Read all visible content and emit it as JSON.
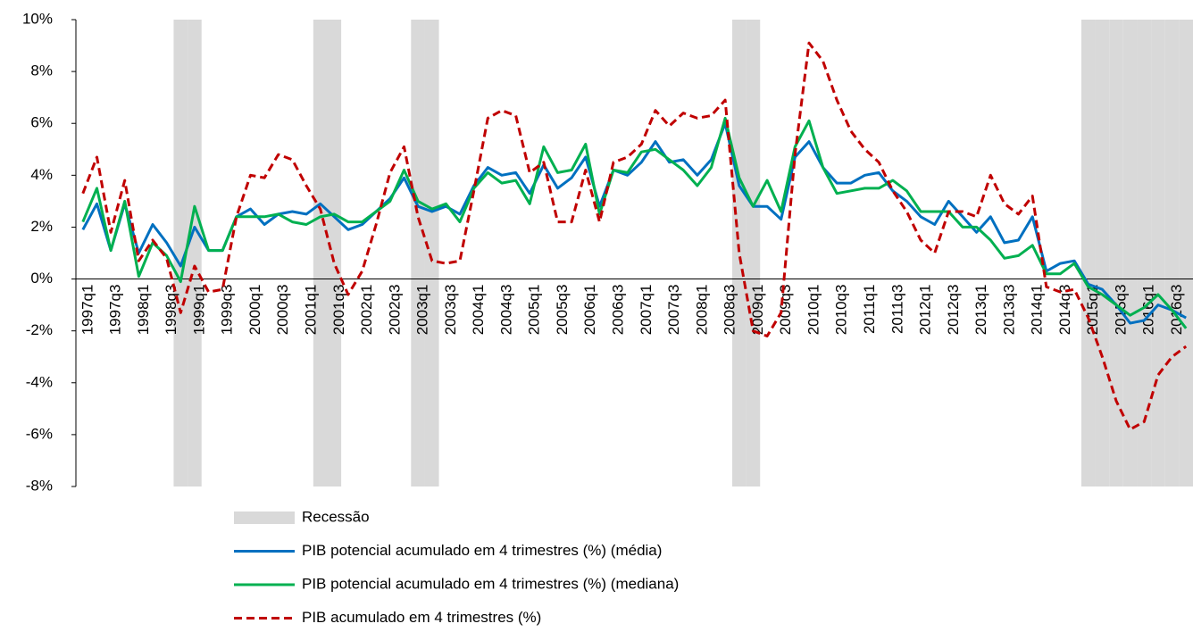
{
  "chart_data": {
    "type": "line",
    "categories": [
      "1997q1",
      null,
      "1997q3",
      null,
      "1998q1",
      null,
      "1998q3",
      null,
      "1999q1",
      null,
      "1999q3",
      null,
      "2000q1",
      null,
      "2000q3",
      null,
      "2001q1",
      null,
      "2001q3",
      null,
      "2002q1",
      null,
      "2002q3",
      null,
      "2003q1",
      null,
      "2003q3",
      null,
      "2004q1",
      null,
      "2004q3",
      null,
      "2005q1",
      null,
      "2005q3",
      null,
      "2006q1",
      null,
      "2006q3",
      null,
      "2007q1",
      null,
      "2007q3",
      null,
      "2008q1",
      null,
      "2008q3",
      null,
      "2009q1",
      null,
      "2009q3",
      null,
      "2010q1",
      null,
      "2010q3",
      null,
      "2011q1",
      null,
      "2011q3",
      null,
      "2012q1",
      null,
      "2012q3",
      null,
      "2013q1",
      null,
      "2013q3",
      null,
      "2014q1",
      null,
      "2014q3",
      null,
      "2015q1",
      null,
      "2015q3",
      null,
      "2016q1",
      null,
      "2016q3",
      null
    ],
    "recession": {
      "name": "Recessão",
      "color": "#d9d9d9",
      "values": [
        0,
        0,
        0,
        0,
        0,
        0,
        0,
        1,
        1,
        0,
        0,
        0,
        0,
        0,
        0,
        0,
        0,
        1,
        1,
        0,
        0,
        0,
        0,
        0,
        1,
        1,
        0,
        0,
        0,
        0,
        0,
        0,
        0,
        0,
        0,
        0,
        0,
        0,
        0,
        0,
        0,
        0,
        0,
        0,
        0,
        0,
        0,
        1,
        1,
        0,
        0,
        0,
        0,
        0,
        0,
        0,
        0,
        0,
        0,
        0,
        0,
        0,
        0,
        0,
        0,
        0,
        0,
        0,
        0,
        0,
        0,
        0,
        1,
        1,
        1,
        1,
        1,
        1,
        1,
        1
      ]
    },
    "series": [
      {
        "name": "PIB potencial acumulado em 4 trimestres (%) (média)",
        "color": "#0070c0",
        "dashed": false,
        "values": [
          1.9,
          2.9,
          1.1,
          2.9,
          1.0,
          2.1,
          1.4,
          0.5,
          2.0,
          1.1,
          1.1,
          2.4,
          2.7,
          2.1,
          2.5,
          2.6,
          2.5,
          2.9,
          2.4,
          1.9,
          2.1,
          2.6,
          3.1,
          3.9,
          2.8,
          2.6,
          2.8,
          2.5,
          3.6,
          4.3,
          4.0,
          4.1,
          3.3,
          4.4,
          3.5,
          3.9,
          4.7,
          2.8,
          4.2,
          4.0,
          4.5,
          5.3,
          4.5,
          4.6,
          4.0,
          4.6,
          6.0,
          3.6,
          2.8,
          2.8,
          2.3,
          4.7,
          5.3,
          4.3,
          3.7,
          3.7,
          4.0,
          4.1,
          3.4,
          3.0,
          2.4,
          2.1,
          3.0,
          2.4,
          1.8,
          2.4,
          1.4,
          1.5,
          2.4,
          0.3,
          0.6,
          0.7,
          -0.2,
          -0.4,
          -1.0,
          -1.7,
          -1.6,
          -1.0,
          -1.2,
          -1.5
        ]
      },
      {
        "name": "PIB potencial acumulado em 4 trimestres (%) (mediana)",
        "color": "#00b050",
        "dashed": false,
        "values": [
          2.2,
          3.5,
          1.1,
          3.0,
          0.1,
          1.4,
          0.9,
          -0.1,
          2.8,
          1.1,
          1.1,
          2.4,
          2.4,
          2.4,
          2.5,
          2.2,
          2.1,
          2.4,
          2.5,
          2.2,
          2.2,
          2.6,
          3.0,
          4.2,
          3.0,
          2.7,
          2.9,
          2.2,
          3.5,
          4.1,
          3.7,
          3.8,
          2.9,
          5.1,
          4.1,
          4.2,
          5.2,
          2.5,
          4.2,
          4.1,
          4.9,
          5.0,
          4.6,
          4.2,
          3.6,
          4.3,
          6.2,
          3.9,
          2.8,
          3.8,
          2.6,
          5.1,
          6.1,
          4.3,
          3.3,
          3.4,
          3.5,
          3.5,
          3.8,
          3.4,
          2.6,
          2.6,
          2.6,
          2.0,
          2.0,
          1.5,
          0.8,
          0.9,
          1.3,
          0.2,
          0.2,
          0.6,
          -0.3,
          -0.6,
          -1.0,
          -1.4,
          -1.1,
          -0.6,
          -1.2,
          -1.9
        ]
      },
      {
        "name": "PIB acumulado em 4 trimestres (%)",
        "color": "#c00000",
        "dashed": true,
        "values": [
          3.3,
          4.7,
          1.8,
          3.8,
          0.7,
          1.5,
          0.8,
          -1.3,
          0.5,
          -0.5,
          -0.4,
          2.4,
          4.0,
          3.9,
          4.8,
          4.6,
          3.6,
          2.7,
          0.6,
          -0.6,
          0.3,
          2.1,
          4.1,
          5.1,
          2.4,
          0.7,
          0.6,
          0.7,
          3.4,
          6.2,
          6.5,
          6.3,
          4.1,
          4.5,
          2.2,
          2.2,
          4.2,
          2.2,
          4.5,
          4.7,
          5.2,
          6.5,
          5.9,
          6.4,
          6.2,
          6.3,
          6.9,
          1.0,
          -2.0,
          -2.2,
          -1.3,
          4.8,
          9.1,
          8.4,
          6.9,
          5.7,
          5.0,
          4.5,
          3.4,
          2.6,
          1.5,
          1.0,
          2.6,
          2.6,
          2.4,
          4.0,
          2.9,
          2.5,
          3.2,
          -0.3,
          -0.5,
          -0.4,
          -1.5,
          -3.0,
          -4.7,
          -5.8,
          -5.5,
          -3.7,
          -3.0,
          -2.6
        ]
      }
    ],
    "ylim": [
      -8,
      10
    ],
    "yticks": [
      {
        "value": -8,
        "label": "-8%"
      },
      {
        "value": -6,
        "label": "-6%"
      },
      {
        "value": -4,
        "label": "-4%"
      },
      {
        "value": -2,
        "label": "-2%"
      },
      {
        "value": 0,
        "label": "0%"
      },
      {
        "value": 2,
        "label": "2%"
      },
      {
        "value": 4,
        "label": "4%"
      },
      {
        "value": 6,
        "label": "6%"
      },
      {
        "value": 8,
        "label": "8%"
      },
      {
        "value": 10,
        "label": "10%"
      }
    ],
    "grid": false
  }
}
